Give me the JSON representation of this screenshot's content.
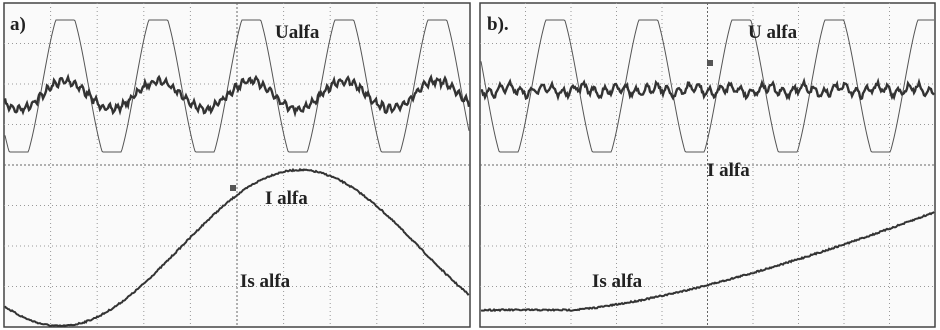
{
  "panels": [
    {
      "label": "a)",
      "traces": [
        "Ualfa",
        "I alfa",
        "Is alfa"
      ]
    },
    {
      "label": "b).",
      "traces": [
        "U alfa",
        "I alfa",
        "Is alfa"
      ]
    }
  ]
}
